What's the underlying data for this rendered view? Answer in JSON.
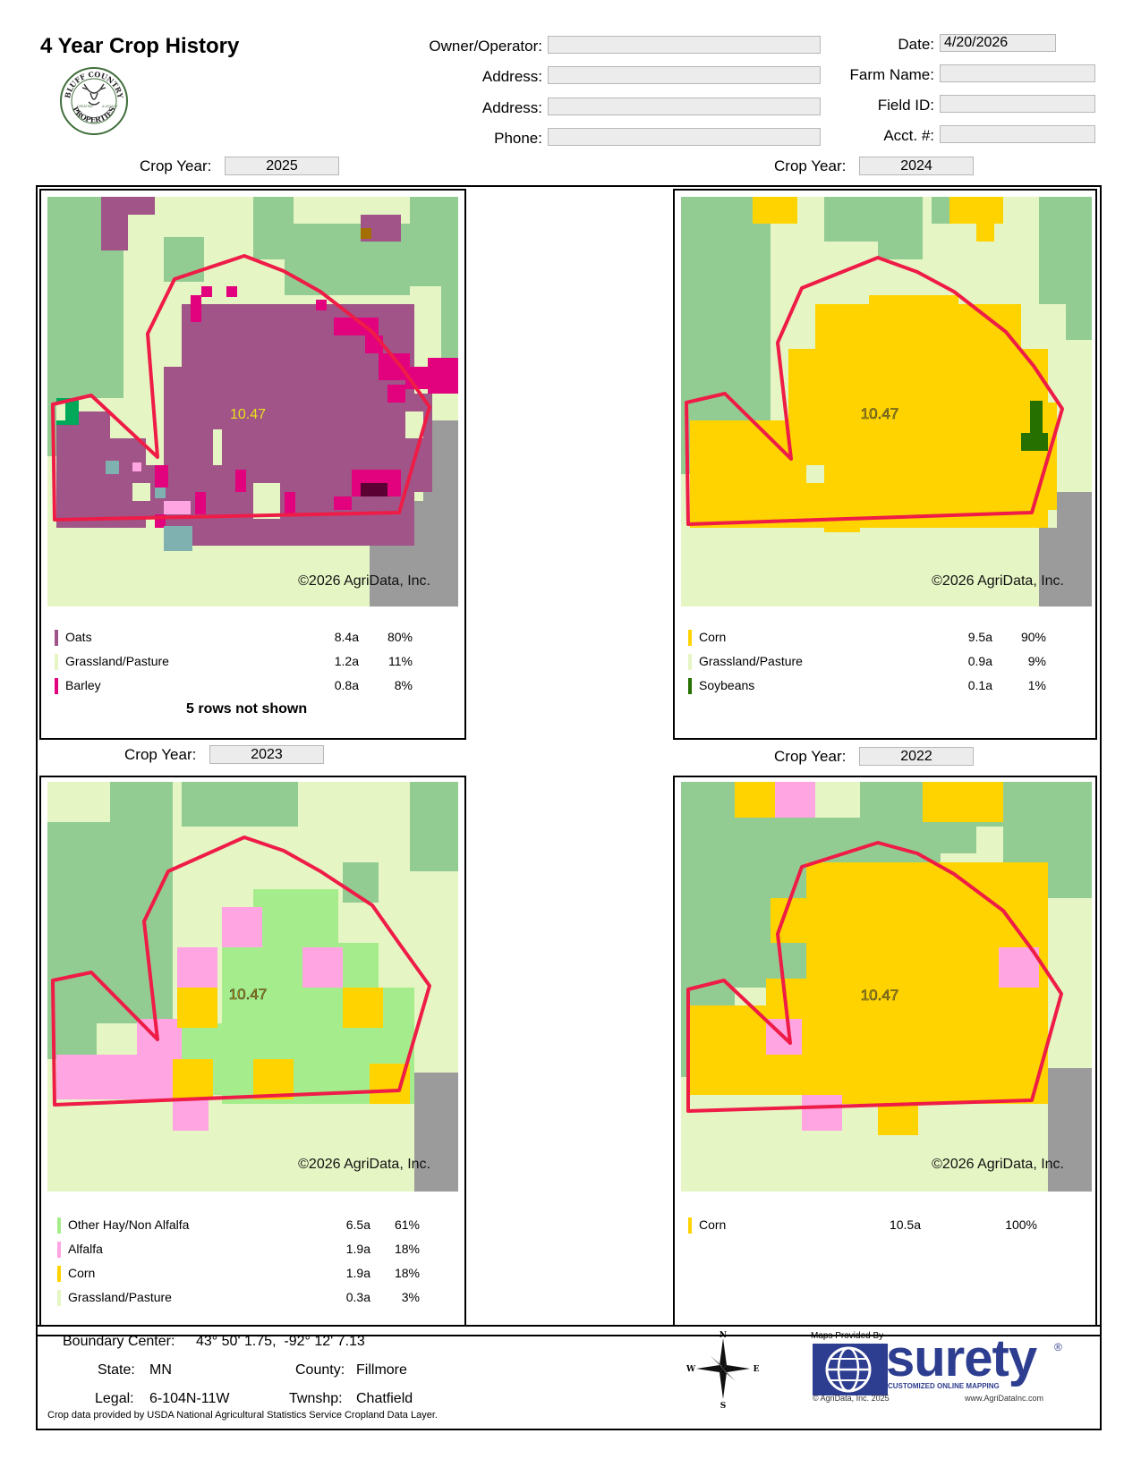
{
  "header": {
    "title": "4 Year Crop History",
    "logo_text": {
      "top": "BLUFF COUNTRY",
      "bottom": "PROPERTIES",
      "left": "CREATING",
      "right": "A LEGACY"
    },
    "owner_label": "Owner/Operator:",
    "owner_value": "",
    "address1_label": "Address:",
    "address1_value": "",
    "address2_label": "Address:",
    "address2_value": "",
    "phone_label": "Phone:",
    "phone_value": "",
    "date_label": "Date:",
    "date_value": "4/20/2026",
    "farm_label": "Farm Name:",
    "farm_value": "",
    "field_label": "Field ID:",
    "field_value": "",
    "acct_label": "Acct. #:",
    "acct_value": ""
  },
  "panels": [
    {
      "crop_year_label": "Crop Year:",
      "crop_year": "2025",
      "acres_label": "10.47",
      "copyright": "©2026 AgriData, Inc.",
      "legend": [
        {
          "name": "Oats",
          "acres": "8.4a",
          "pct": "80%",
          "color": "#a05488"
        },
        {
          "name": "Grassland/Pasture",
          "acres": "1.2a",
          "pct": "11%",
          "color": "#e6f5c4"
        },
        {
          "name": "Barley",
          "acres": "0.8a",
          "pct": "8%",
          "color": "#e2027d"
        }
      ],
      "note": "5 rows not shown"
    },
    {
      "crop_year_label": "Crop Year:",
      "crop_year": "2024",
      "acres_label": "10.47",
      "copyright": "©2026 AgriData, Inc.",
      "legend": [
        {
          "name": "Corn",
          "acres": "9.5a",
          "pct": "90%",
          "color": "#ffd300"
        },
        {
          "name": "Grassland/Pasture",
          "acres": "0.9a",
          "pct": "9%",
          "color": "#e6f5c4"
        },
        {
          "name": "Soybeans",
          "acres": "0.1a",
          "pct": "1%",
          "color": "#267000"
        }
      ],
      "note": ""
    },
    {
      "crop_year_label": "Crop Year:",
      "crop_year": "2023",
      "acres_label": "10.47",
      "copyright": "©2026 AgriData, Inc.",
      "legend": [
        {
          "name": "Other Hay/Non Alfalfa",
          "acres": "6.5a",
          "pct": "61%",
          "color": "#a5ed8c"
        },
        {
          "name": "Alfalfa",
          "acres": "1.9a",
          "pct": "18%",
          "color": "#ffa5e2"
        },
        {
          "name": "Corn",
          "acres": "1.9a",
          "pct": "18%",
          "color": "#ffd300"
        },
        {
          "name": "Grassland/Pasture",
          "acres": "0.3a",
          "pct": "3%",
          "color": "#e6f5c4"
        }
      ],
      "note": ""
    },
    {
      "crop_year_label": "Crop Year:",
      "crop_year": "2022",
      "acres_label": "10.47",
      "copyright": "©2026 AgriData, Inc.",
      "legend": [
        {
          "name": "Corn",
          "acres": "10.5a",
          "pct": "100%",
          "color": "#ffd300"
        }
      ],
      "note": ""
    }
  ],
  "footer": {
    "boundary_label": "Boundary Center:",
    "boundary_value": "43° 50' 1.75,  -92° 12' 7.13",
    "state_label": "State:",
    "state_value": "MN",
    "county_label": "County:",
    "county_value": "Fillmore",
    "legal_label": "Legal:",
    "legal_value": "6-104N-11W",
    "twnshp_label": "Twnshp:",
    "twnshp_value": "Chatfield",
    "source_note": "Crop data provided by USDA National Agricultural Statistics Service Cropland Data Layer.",
    "compass": {
      "n": "N",
      "s": "S",
      "e": "E",
      "w": "W"
    },
    "provider_label": "Maps Provided By",
    "brand": "surety",
    "brand_reg": "®",
    "brand_tagline": "CUSTOMIZED ONLINE MAPPING",
    "brand_copyright": "© AgriData, Inc. 2025",
    "brand_url": "www.AgriDataInc.com"
  }
}
